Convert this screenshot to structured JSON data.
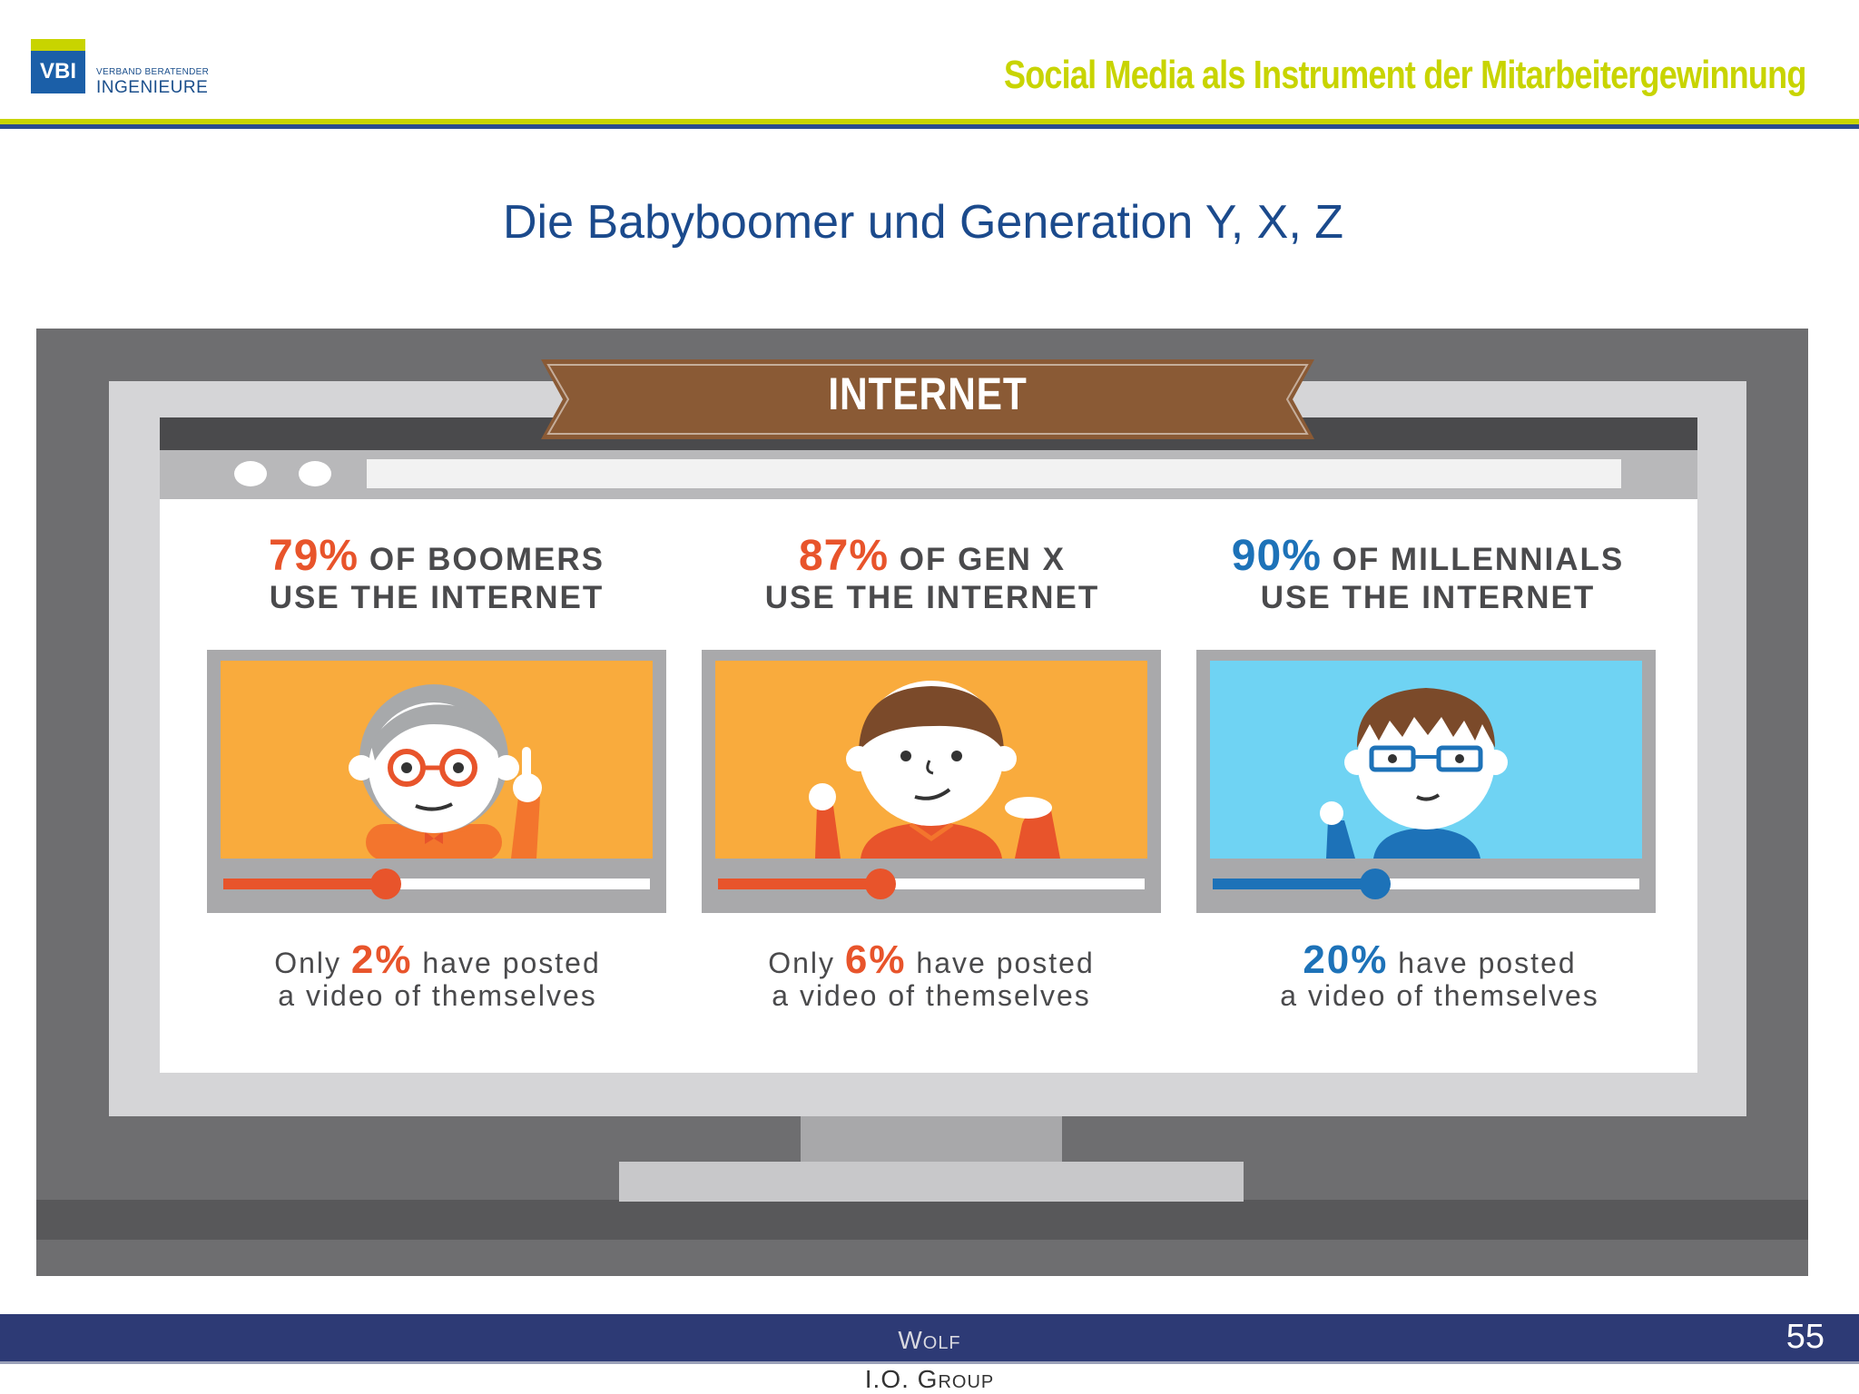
{
  "header": {
    "logo_mark": "VBI",
    "logo_line1": "VERBAND BERATENDER",
    "logo_line2": "INGENIEURE",
    "title": "Social Media als Instrument der Mitarbeitergewinnung"
  },
  "slide": {
    "title": "Die Babyboomer und Generation Y, X, Z"
  },
  "infographic": {
    "banner": "INTERNET",
    "columns": [
      {
        "pct": "79%",
        "group": "OF BOOMERS",
        "line2": "USE THE INTERNET",
        "foot_prefix": "Only",
        "foot_pct": "2%",
        "foot_suffix": "have posted",
        "foot_line2": "a video of themselves",
        "accent": "#e8542b",
        "video_bg": "#f9ab3d",
        "progress": 0.38,
        "character": "boomer-character"
      },
      {
        "pct": "87%",
        "group": "OF GEN X",
        "line2": "USE THE INTERNET",
        "foot_prefix": "Only",
        "foot_pct": "6%",
        "foot_suffix": "have posted",
        "foot_line2": "a video of themselves",
        "accent": "#e8542b",
        "video_bg": "#f9ab3d",
        "progress": 0.38,
        "character": "genx-character"
      },
      {
        "pct": "90%",
        "group": "OF MILLENNIALS",
        "line2": "USE THE INTERNET",
        "foot_prefix": "",
        "foot_pct": "20%",
        "foot_suffix": "have posted",
        "foot_line2": "a video of themselves",
        "accent": "#1d72b8",
        "video_bg": "#6fd3f3",
        "progress": 0.38,
        "character": "millennial-character"
      }
    ]
  },
  "footer": {
    "line1": "Wolf",
    "line2": "I.O. Group",
    "page": "55"
  }
}
